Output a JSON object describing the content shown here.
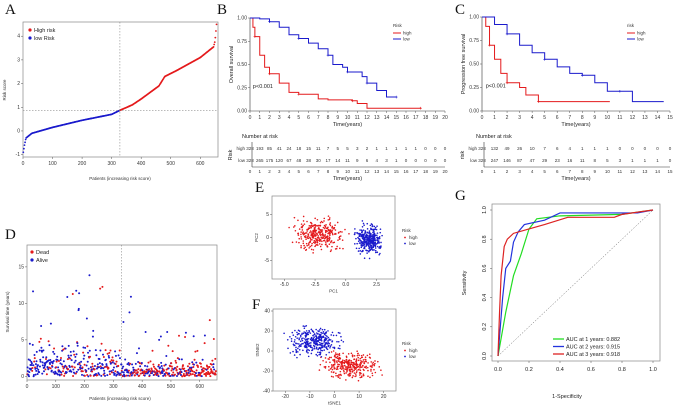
{
  "panel_labels": {
    "A": "A",
    "B": "B",
    "C": "C",
    "D": "D",
    "E": "E",
    "F": "F",
    "G": "G"
  },
  "colors": {
    "high": "#e41a1c",
    "low": "#1a1acc",
    "roc1": "#22dd22",
    "roc2": "#2233dd",
    "roc3": "#dd2222"
  },
  "chart_data": [
    {
      "panel": "A",
      "type": "scatter",
      "title": "",
      "xlabel": "Patients (increasing risk score)",
      "ylabel": "Risk score",
      "xlim": [
        0,
        660
      ],
      "ylim": [
        -1.1,
        4.6
      ],
      "xticks": [
        "0",
        "100",
        "200",
        "300",
        "400",
        "500",
        "600"
      ],
      "yticks": [
        "-1",
        "0",
        "1",
        "2",
        "3",
        "4"
      ],
      "cutoff_x": 328,
      "cutoff_y": 0.87,
      "legend": [
        "High risk",
        "low Risk"
      ],
      "curve": [
        [
          1,
          -0.9
        ],
        [
          5,
          -0.6
        ],
        [
          10,
          -0.3
        ],
        [
          30,
          -0.1
        ],
        [
          100,
          0.15
        ],
        [
          200,
          0.45
        ],
        [
          300,
          0.7
        ],
        [
          328,
          0.87
        ],
        [
          370,
          1.1
        ],
        [
          400,
          1.35
        ],
        [
          460,
          1.9
        ],
        [
          480,
          2.3
        ],
        [
          520,
          2.55
        ],
        [
          600,
          3.1
        ],
        [
          645,
          3.55
        ],
        [
          650,
          3.8
        ],
        [
          655,
          4.5
        ]
      ]
    },
    {
      "panel": "B",
      "type": "line",
      "xlabel": "Time(years)",
      "ylabel": "Overall survival",
      "xlim": [
        0,
        20
      ],
      "ylim": [
        0,
        1
      ],
      "xticks": [
        "0",
        "1",
        "2",
        "3",
        "4",
        "5",
        "6",
        "7",
        "8",
        "9",
        "10",
        "11",
        "12",
        "13",
        "14",
        "15",
        "16",
        "17",
        "18",
        "19",
        "20"
      ],
      "yticks": [
        "0.00",
        "0.25",
        "0.50",
        "0.75",
        "1.00"
      ],
      "legend_title": "Risk",
      "pvalue": "p<0.001",
      "series": [
        {
          "name": "high",
          "points": [
            [
              0,
              1
            ],
            [
              0.3,
              0.9
            ],
            [
              0.5,
              0.8
            ],
            [
              1,
              0.6
            ],
            [
              1.5,
              0.47
            ],
            [
              2,
              0.4
            ],
            [
              3,
              0.3
            ],
            [
              4,
              0.2
            ],
            [
              5,
              0.18
            ],
            [
              7,
              0.13
            ],
            [
              8,
              0.12
            ],
            [
              10.5,
              0.11
            ],
            [
              11,
              0.08
            ],
            [
              12,
              0.03
            ],
            [
              17.5,
              0.03
            ]
          ]
        },
        {
          "name": "low",
          "points": [
            [
              0,
              1
            ],
            [
              1,
              0.99
            ],
            [
              2,
              0.96
            ],
            [
              3,
              0.9
            ],
            [
              4,
              0.82
            ],
            [
              5,
              0.78
            ],
            [
              6,
              0.73
            ],
            [
              7,
              0.67
            ],
            [
              8,
              0.6
            ],
            [
              8.5,
              0.5
            ],
            [
              9.5,
              0.47
            ],
            [
              10,
              0.42
            ],
            [
              11,
              0.42
            ],
            [
              11.5,
              0.37
            ],
            [
              12,
              0.3
            ],
            [
              13,
              0.22
            ],
            [
              14,
              0.15
            ],
            [
              15,
              0.15
            ]
          ]
        }
      ],
      "risk_table": {
        "title": "Number at risk",
        "ylabel": "Risk",
        "xlabel": "Time(years)",
        "rows": [
          {
            "name": "high",
            "values": [
              "328",
              "193",
              "85",
              "41",
              "24",
              "18",
              "15",
              "11",
              "7",
              "5",
              "5",
              "3",
              "2",
              "1",
              "1",
              "1",
              "1",
              "1",
              "0",
              "0",
              "0"
            ]
          },
          {
            "name": "low",
            "values": [
              "328",
              "265",
              "175",
              "120",
              "67",
              "48",
              "38",
              "30",
              "17",
              "14",
              "11",
              "9",
              "6",
              "4",
              "3",
              "1",
              "0",
              "0",
              "0",
              "0",
              "0"
            ]
          }
        ]
      }
    },
    {
      "panel": "C",
      "type": "line",
      "xlabel": "Time(years)",
      "ylabel": "Progression free survival",
      "xlim": [
        0,
        15
      ],
      "ylim": [
        0,
        1
      ],
      "xticks": [
        "0",
        "1",
        "2",
        "3",
        "4",
        "5",
        "6",
        "7",
        "8",
        "9",
        "10",
        "11",
        "12",
        "13",
        "14",
        "15"
      ],
      "yticks": [
        "0.00",
        "0.25",
        "0.50",
        "0.75",
        "1.00"
      ],
      "legend_title": "risk",
      "pvalue": "p<0.001",
      "series": [
        {
          "name": "high",
          "points": [
            [
              0,
              1
            ],
            [
              0.3,
              0.9
            ],
            [
              0.6,
              0.7
            ],
            [
              1,
              0.55
            ],
            [
              1.5,
              0.4
            ],
            [
              2,
              0.3
            ],
            [
              3,
              0.25
            ],
            [
              3.5,
              0.17
            ],
            [
              4.5,
              0.1
            ],
            [
              10.2,
              0.1
            ]
          ]
        },
        {
          "name": "low",
          "points": [
            [
              0,
              1
            ],
            [
              1,
              0.92
            ],
            [
              2,
              0.82
            ],
            [
              3,
              0.7
            ],
            [
              4,
              0.62
            ],
            [
              5,
              0.55
            ],
            [
              6,
              0.47
            ],
            [
              7,
              0.4
            ],
            [
              8,
              0.38
            ],
            [
              9,
              0.3
            ],
            [
              10,
              0.21
            ],
            [
              11,
              0.21
            ],
            [
              12,
              0.1
            ],
            [
              14.5,
              0.1
            ]
          ]
        }
      ],
      "risk_table": {
        "title": "Number at risk",
        "ylabel": "risk",
        "xlabel": "Time(years)",
        "rows": [
          {
            "name": "high",
            "values": [
              "328",
              "132",
              "49",
              "26",
              "10",
              "7",
              "6",
              "4",
              "1",
              "1",
              "1",
              "0",
              "0",
              "0",
              "0",
              "0"
            ]
          },
          {
            "name": "low",
            "values": [
              "328",
              "247",
              "146",
              "87",
              "47",
              "29",
              "23",
              "16",
              "11",
              "8",
              "5",
              "3",
              "1",
              "1",
              "1",
              "0"
            ]
          }
        ]
      }
    },
    {
      "panel": "D",
      "type": "scatter",
      "xlabel": "Patients (increasing risk score)",
      "ylabel": "Survival time (years)",
      "xlim": [
        0,
        660
      ],
      "ylim": [
        -0.5,
        18
      ],
      "xticks": [
        "0",
        "100",
        "200",
        "300",
        "400",
        "500",
        "600"
      ],
      "yticks": [
        "0",
        "5",
        "10",
        "15"
      ],
      "cutoff_x": 328,
      "legend": [
        "Dead",
        "Alive"
      ]
    },
    {
      "panel": "E",
      "type": "scatter",
      "xlabel": "PC1",
      "ylabel": "PC2",
      "xlim": [
        -6,
        4
      ],
      "ylim": [
        -9,
        9
      ],
      "xticks": [
        "-5.0",
        "-2.5",
        "0.0",
        "2.5"
      ],
      "yticks": [
        "-5",
        "0",
        "5"
      ],
      "legend_title": "Risk",
      "legend": [
        "high",
        "low"
      ]
    },
    {
      "panel": "F",
      "type": "scatter",
      "xlabel": "tSNE1",
      "ylabel": "tSNE2",
      "xlim": [
        -25,
        25
      ],
      "ylim": [
        -40,
        42
      ],
      "xticks": [
        "-20",
        "-10",
        "0",
        "10",
        "20"
      ],
      "yticks": [
        "-40",
        "-20",
        "0",
        "20",
        "40"
      ],
      "legend_title": "Risk",
      "legend": [
        "high",
        "low"
      ]
    },
    {
      "panel": "G",
      "type": "line",
      "xlabel": "1-Specificity",
      "ylabel": "Sensitivity",
      "xlim": [
        0,
        1
      ],
      "ylim": [
        0,
        1
      ],
      "xticks": [
        "0.0",
        "0.2",
        "0.4",
        "0.6",
        "0.8",
        "1.0"
      ],
      "yticks": [
        "0.0",
        "0.2",
        "0.4",
        "0.6",
        "0.8",
        "1.0"
      ],
      "series": [
        {
          "name": "AUC at 1 years: 0.882",
          "points": [
            [
              0,
              0
            ],
            [
              0.05,
              0.3
            ],
            [
              0.1,
              0.55
            ],
            [
              0.15,
              0.7
            ],
            [
              0.2,
              0.87
            ],
            [
              0.25,
              0.94
            ],
            [
              0.4,
              0.96
            ],
            [
              0.8,
              0.97
            ],
            [
              1,
              1
            ]
          ]
        },
        {
          "name": "AUC at 2 years: 0.915",
          "points": [
            [
              0,
              0
            ],
            [
              0.03,
              0.4
            ],
            [
              0.05,
              0.6
            ],
            [
              0.08,
              0.65
            ],
            [
              0.1,
              0.78
            ],
            [
              0.13,
              0.85
            ],
            [
              0.17,
              0.9
            ],
            [
              0.3,
              0.93
            ],
            [
              0.4,
              0.98
            ],
            [
              0.9,
              0.98
            ],
            [
              1,
              1
            ]
          ]
        },
        {
          "name": "AUC at 3 years: 0.918",
          "points": [
            [
              0,
              0
            ],
            [
              0.01,
              0.3
            ],
            [
              0.02,
              0.55
            ],
            [
              0.04,
              0.75
            ],
            [
              0.06,
              0.8
            ],
            [
              0.1,
              0.84
            ],
            [
              0.2,
              0.87
            ],
            [
              0.3,
              0.9
            ],
            [
              0.45,
              0.95
            ],
            [
              0.75,
              0.95
            ],
            [
              0.8,
              0.97
            ],
            [
              1,
              1
            ]
          ]
        }
      ]
    }
  ]
}
